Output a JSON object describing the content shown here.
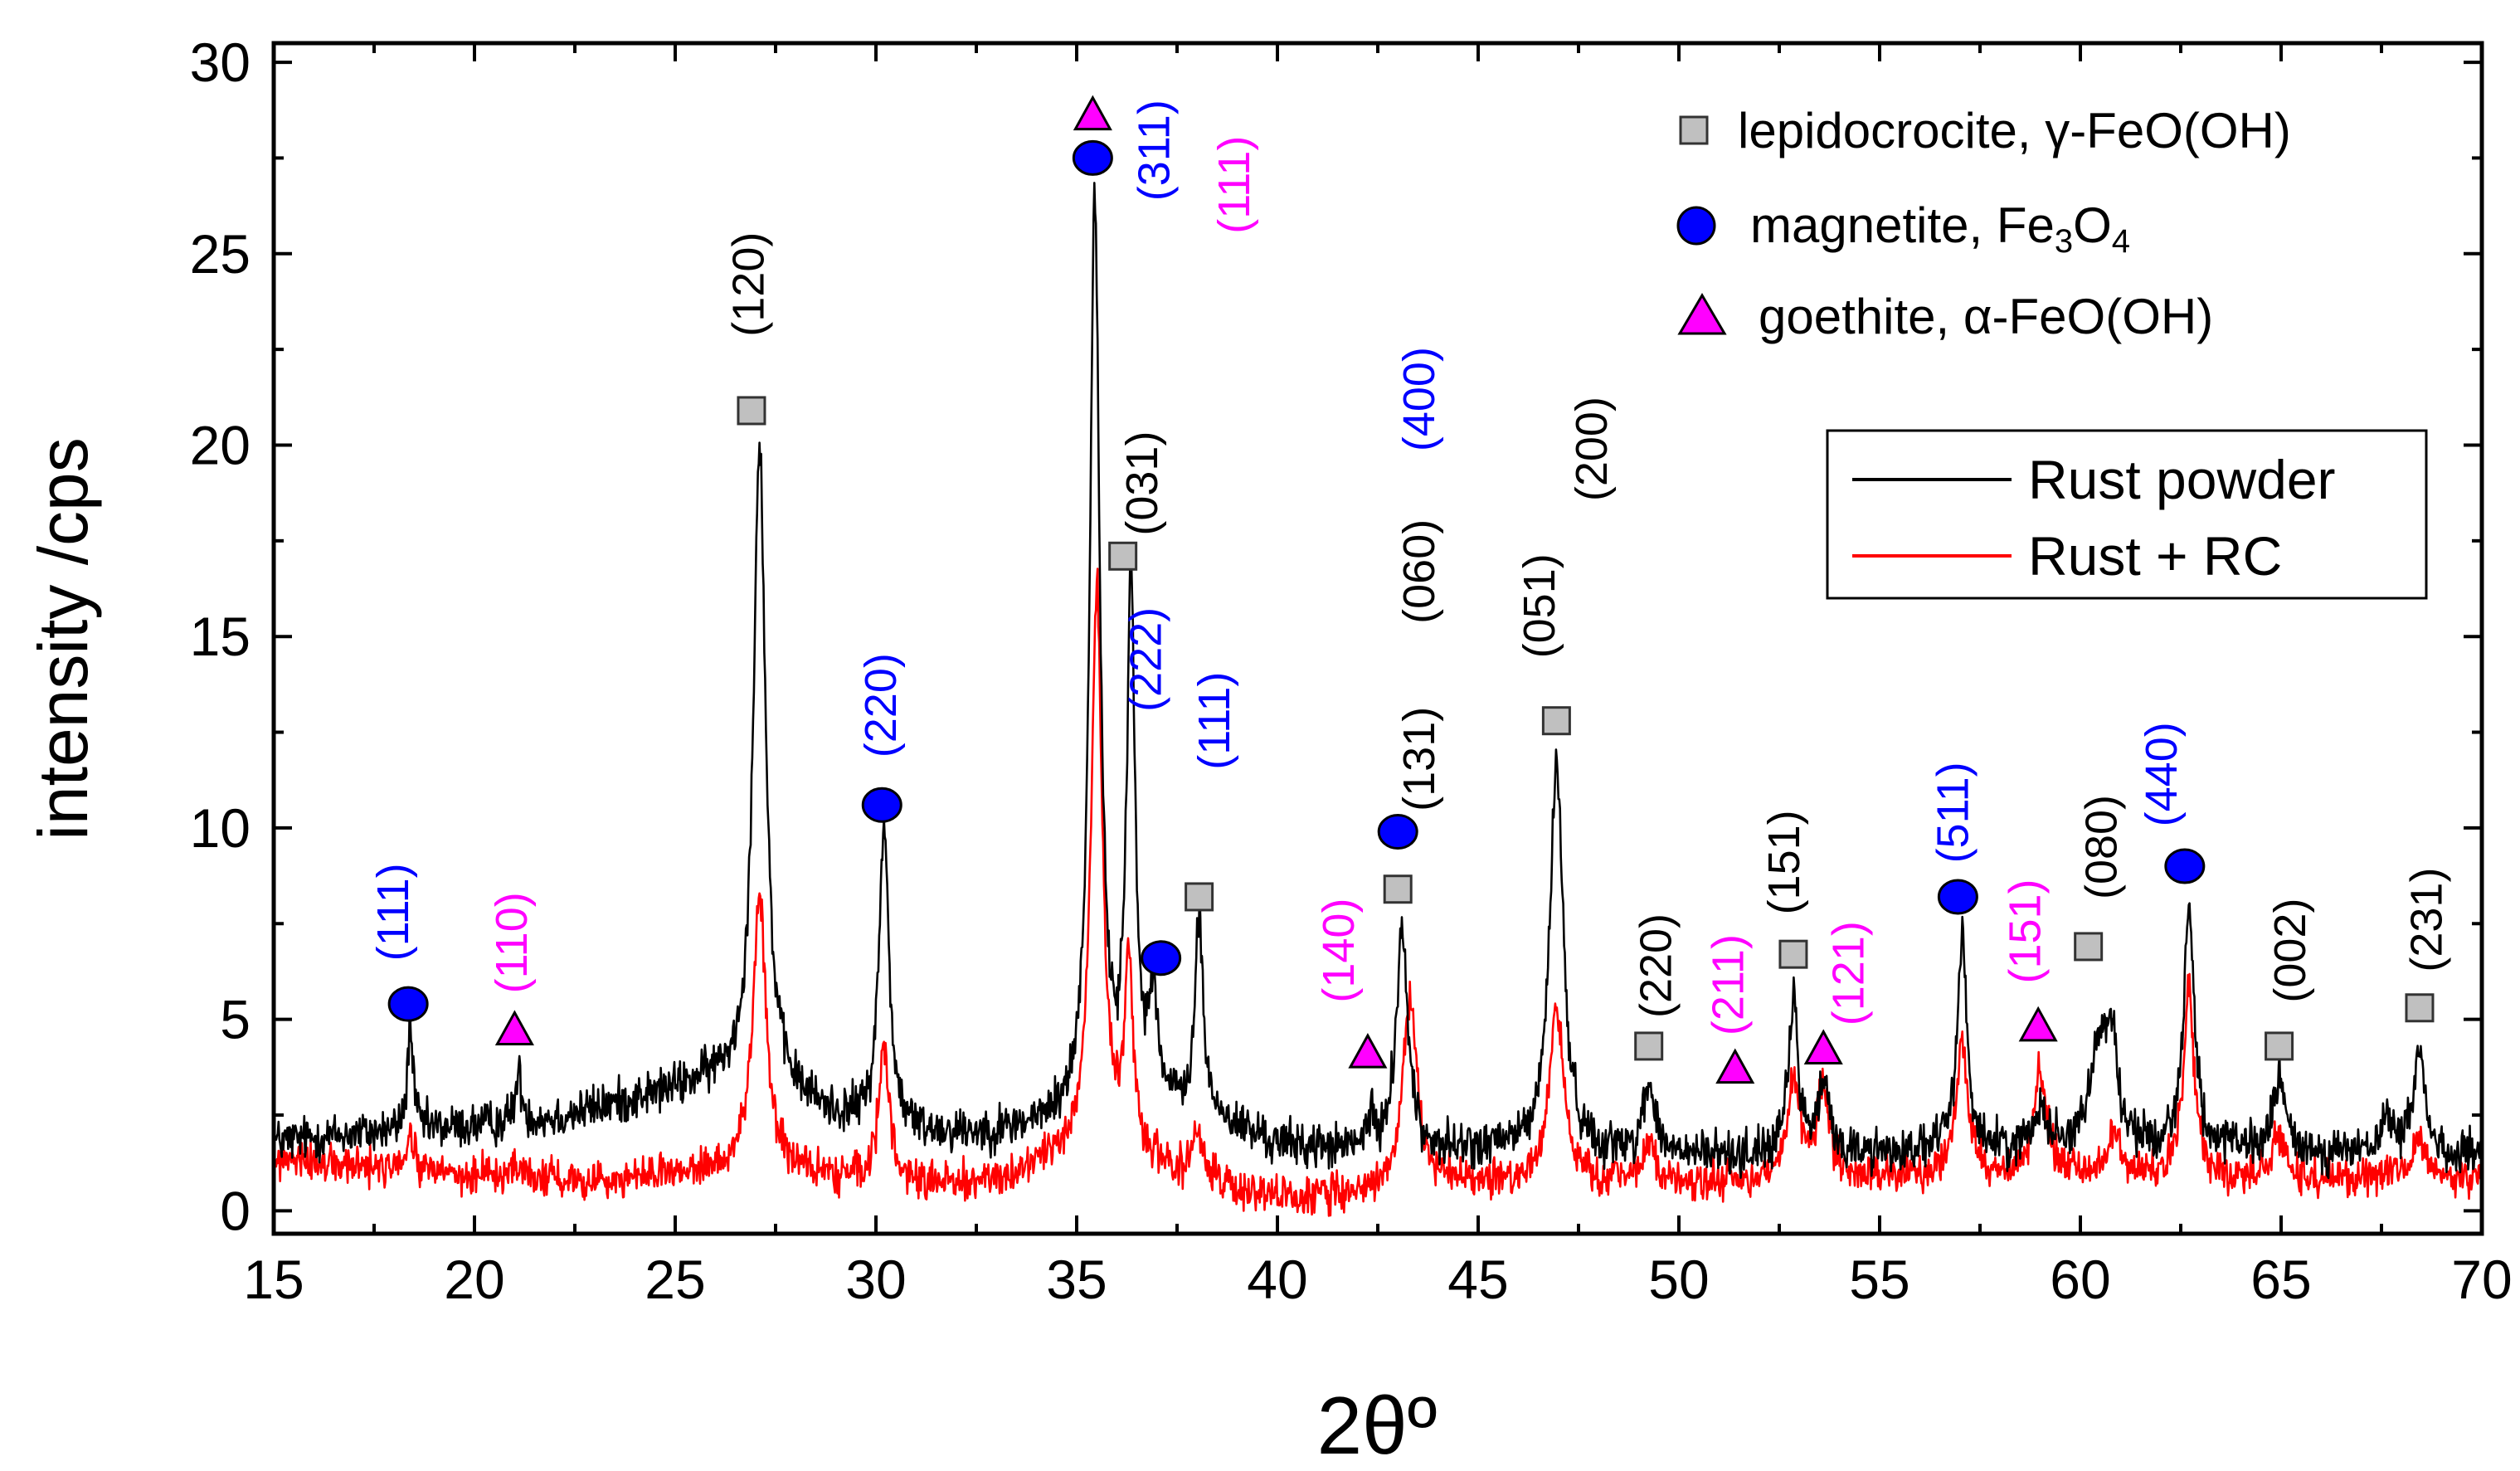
{
  "chart_data": {
    "type": "line",
    "xlabel": "2θº",
    "ylabel": "intensity /cps",
    "xlim": [
      15,
      70
    ],
    "ylim": [
      -0.6,
      30.5
    ],
    "x_ticks": [
      "15",
      "20",
      "25",
      "30",
      "35",
      "40",
      "45",
      "50",
      "55",
      "60",
      "65",
      "70"
    ],
    "y_ticks": [
      "0",
      "5",
      "10",
      "15",
      "20",
      "25",
      "30"
    ],
    "colors": {
      "rust_powder": "#000000",
      "rust_rc": "#ff0000",
      "lepidocrocite": "#c0c0c0",
      "magnetite": "#0000ff",
      "goethite": "#ff00ff"
    },
    "series": [
      {
        "name": "Rust powder",
        "color": "#000000",
        "baseline": [
          [
            15,
            1.8
          ],
          [
            17,
            2.0
          ],
          [
            20,
            2.2
          ],
          [
            22,
            2.4
          ],
          [
            24,
            2.9
          ],
          [
            26,
            3.4
          ],
          [
            27,
            3.4
          ],
          [
            29,
            2.4
          ],
          [
            31,
            2.0
          ],
          [
            33,
            2.0
          ],
          [
            35,
            2.3
          ],
          [
            36,
            2.5
          ],
          [
            38,
            2.5
          ],
          [
            40,
            1.7
          ],
          [
            42,
            1.5
          ],
          [
            44,
            1.5
          ],
          [
            46,
            1.6
          ],
          [
            48,
            1.5
          ],
          [
            50,
            1.4
          ],
          [
            55,
            1.5
          ],
          [
            60,
            1.6
          ],
          [
            65,
            1.5
          ],
          [
            70,
            1.4
          ]
        ],
        "peaks": [
          [
            18.4,
            2.8,
            0.08
          ],
          [
            21.1,
            1.2,
            0.1
          ],
          [
            27.1,
            16.8,
            0.18
          ],
          [
            30.2,
            7.8,
            0.15
          ],
          [
            35.45,
            24.0,
            0.15
          ],
          [
            36.35,
            13.8,
            0.12
          ],
          [
            36.9,
            3.0,
            0.14
          ],
          [
            38.05,
            5.0,
            0.12
          ],
          [
            42.3,
            0.7,
            0.12
          ],
          [
            43.1,
            5.8,
            0.18
          ],
          [
            46.95,
            10.2,
            0.2
          ],
          [
            49.25,
            1.8,
            0.18
          ],
          [
            52.85,
            4.0,
            0.14
          ],
          [
            53.6,
            1.8,
            0.16
          ],
          [
            57.05,
            5.5,
            0.15
          ],
          [
            59.0,
            1.2,
            0.16
          ],
          [
            60.5,
            2.8,
            0.3
          ],
          [
            60.8,
            2.0,
            0.14
          ],
          [
            62.7,
            6.3,
            0.16
          ],
          [
            64.95,
            1.9,
            0.18
          ],
          [
            67.7,
            0.8,
            0.25
          ],
          [
            68.45,
            2.9,
            0.15
          ]
        ],
        "noise": 0.42
      },
      {
        "name": "Rust + RC",
        "color": "#ff0000",
        "baseline": [
          [
            15,
            1.3
          ],
          [
            20,
            0.9
          ],
          [
            23,
            0.8
          ],
          [
            25,
            0.9
          ],
          [
            27,
            1.2
          ],
          [
            29,
            0.8
          ],
          [
            31,
            0.6
          ],
          [
            33,
            0.8
          ],
          [
            34.5,
            1.4
          ],
          [
            36,
            1.5
          ],
          [
            38,
            0.8
          ],
          [
            40,
            0.3
          ],
          [
            42,
            0.4
          ],
          [
            44,
            0.7
          ],
          [
            46,
            0.7
          ],
          [
            50,
            0.7
          ],
          [
            53,
            0.8
          ],
          [
            56,
            0.9
          ],
          [
            60,
            0.9
          ],
          [
            63,
            0.8
          ],
          [
            65,
            0.8
          ],
          [
            70,
            0.9
          ]
        ],
        "peaks": [
          [
            18.4,
            0.9,
            0.1
          ],
          [
            21.1,
            0.3,
            0.12
          ],
          [
            27.1,
            7.0,
            0.2
          ],
          [
            30.2,
            3.6,
            0.16
          ],
          [
            35.5,
            14.7,
            0.17
          ],
          [
            36.3,
            5.0,
            0.12
          ],
          [
            38.0,
            1.2,
            0.14
          ],
          [
            43.3,
            4.9,
            0.22
          ],
          [
            46.95,
            4.6,
            0.22
          ],
          [
            49.25,
            1.0,
            0.18
          ],
          [
            52.85,
            2.7,
            0.18
          ],
          [
            53.6,
            2.2,
            0.2
          ],
          [
            57.05,
            3.5,
            0.17
          ],
          [
            59.0,
            2.8,
            0.18
          ],
          [
            60.8,
            1.2,
            0.18
          ],
          [
            62.7,
            5.0,
            0.17
          ],
          [
            64.95,
            1.2,
            0.2
          ],
          [
            68.45,
            1.0,
            0.2
          ]
        ],
        "noise": 0.36
      }
    ],
    "phase_markers": [
      {
        "phase": "magnetite",
        "shape": "circle",
        "x": 18.35,
        "y": 5.4
      },
      {
        "phase": "goethite",
        "shape": "triangle",
        "x": 21.0,
        "y": 4.7
      },
      {
        "phase": "lepidocrocite",
        "shape": "square",
        "x": 26.9,
        "y": 20.9
      },
      {
        "phase": "magnetite",
        "shape": "circle",
        "x": 30.15,
        "y": 10.6
      },
      {
        "phase": "magnetite",
        "shape": "circle",
        "x": 35.4,
        "y": 27.5
      },
      {
        "phase": "goethite",
        "shape": "triangle",
        "x": 35.4,
        "y": 28.6
      },
      {
        "phase": "lepidocrocite",
        "shape": "square",
        "x": 36.15,
        "y": 17.1
      },
      {
        "phase": "magnetite",
        "shape": "circle",
        "x": 37.1,
        "y": 6.6
      },
      {
        "phase": "lepidocrocite",
        "shape": "square",
        "x": 38.05,
        "y": 8.2
      },
      {
        "phase": "goethite",
        "shape": "triangle",
        "x": 42.25,
        "y": 4.1
      },
      {
        "phase": "magnetite",
        "shape": "circle",
        "x": 43.0,
        "y": 9.9
      },
      {
        "phase": "lepidocrocite",
        "shape": "square",
        "x": 43.0,
        "y": 8.4
      },
      {
        "phase": "lepidocrocite",
        "shape": "square",
        "x": 46.95,
        "y": 12.8
      },
      {
        "phase": "lepidocrocite",
        "shape": "square",
        "x": 49.25,
        "y": 4.3
      },
      {
        "phase": "goethite",
        "shape": "triangle",
        "x": 51.4,
        "y": 3.7
      },
      {
        "phase": "lepidocrocite",
        "shape": "square",
        "x": 52.85,
        "y": 6.7
      },
      {
        "phase": "goethite",
        "shape": "triangle",
        "x": 53.6,
        "y": 4.2
      },
      {
        "phase": "magnetite",
        "shape": "circle",
        "x": 56.95,
        "y": 8.2
      },
      {
        "phase": "goethite",
        "shape": "triangle",
        "x": 58.95,
        "y": 4.8
      },
      {
        "phase": "lepidocrocite",
        "shape": "square",
        "x": 60.2,
        "y": 6.9
      },
      {
        "phase": "magnetite",
        "shape": "circle",
        "x": 62.6,
        "y": 9.0
      },
      {
        "phase": "lepidocrocite",
        "shape": "square",
        "x": 64.95,
        "y": 4.3
      },
      {
        "phase": "lepidocrocite",
        "shape": "square",
        "x": 68.45,
        "y": 5.3
      }
    ],
    "peak_labels": [
      {
        "text": "(111)",
        "phase": "magnetite",
        "x": 18.35,
        "y": 7.8
      },
      {
        "text": "(110)",
        "phase": "goethite",
        "x": 21.3,
        "y": 7.0
      },
      {
        "text": "(120)",
        "phase": "lepidocrocite",
        "x": 27.2,
        "y": 24.2
      },
      {
        "text": "(220)",
        "phase": "magnetite",
        "x": 30.5,
        "y": 13.2
      },
      {
        "text": "(311)",
        "phase": "magnetite",
        "x": 37.3,
        "y": 27.7
      },
      {
        "text": "(111)",
        "phase": "goethite",
        "x": 39.3,
        "y": 26.8
      },
      {
        "text": "(031)",
        "phase": "lepidocrocite",
        "x": 37.0,
        "y": 19.0
      },
      {
        "text": "(222)",
        "phase": "magnetite",
        "x": 37.1,
        "y": 14.4
      },
      {
        "text": "(111)",
        "phase": "magnetite",
        "x": 38.8,
        "y": 12.8
      },
      {
        "text": "(140)",
        "phase": "goethite",
        "x": 41.9,
        "y": 6.8
      },
      {
        "text": "(131)",
        "phase": "lepidocrocite",
        "x": 43.9,
        "y": 11.8
      },
      {
        "text": "(060)",
        "phase": "lepidocrocite",
        "x": 43.9,
        "y": 16.7
      },
      {
        "text": "(400)",
        "phase": "magnetite",
        "x": 43.9,
        "y": 21.2
      },
      {
        "text": "(051)",
        "phase": "lepidocrocite",
        "x": 46.9,
        "y": 15.8
      },
      {
        "text": "(200)",
        "phase": "lepidocrocite",
        "x": 48.2,
        "y": 19.9
      },
      {
        "text": "(220)",
        "phase": "lepidocrocite",
        "x": 49.8,
        "y": 6.4
      },
      {
        "text": "(211)",
        "phase": "goethite",
        "x": 51.6,
        "y": 5.9
      },
      {
        "text": "(151)",
        "phase": "lepidocrocite",
        "x": 53.0,
        "y": 9.1
      },
      {
        "text": "(121)",
        "phase": "goethite",
        "x": 54.6,
        "y": 6.2
      },
      {
        "text": "(511)",
        "phase": "magnetite",
        "x": 57.2,
        "y": 10.4
      },
      {
        "text": "(151)",
        "phase": "goethite",
        "x": 59.0,
        "y": 7.3
      },
      {
        "text": "(080)",
        "phase": "lepidocrocite",
        "x": 60.9,
        "y": 9.5
      },
      {
        "text": "(440)",
        "phase": "magnetite",
        "x": 62.4,
        "y": 11.4
      },
      {
        "text": "(002)",
        "phase": "lepidocrocite",
        "x": 65.6,
        "y": 6.8
      },
      {
        "text": "(231)",
        "phase": "lepidocrocite",
        "x": 69.0,
        "y": 7.6
      }
    ],
    "phase_legend": [
      {
        "phase": "lepidocrocite",
        "shape": "square",
        "text": "lepidocrocite, γ-FeO(OH)"
      },
      {
        "phase": "magnetite",
        "shape": "circle",
        "text_main": "magnetite, Fe",
        "sub1": "3",
        "text_mid": "O",
        "sub2": "4"
      },
      {
        "phase": "goethite",
        "shape": "triangle",
        "text": "goethite, α-FeO(OH)"
      }
    ],
    "series_legend": [
      {
        "name": "Rust powder",
        "color": "#000000"
      },
      {
        "name": "Rust + RC",
        "color": "#ff0000"
      }
    ]
  }
}
